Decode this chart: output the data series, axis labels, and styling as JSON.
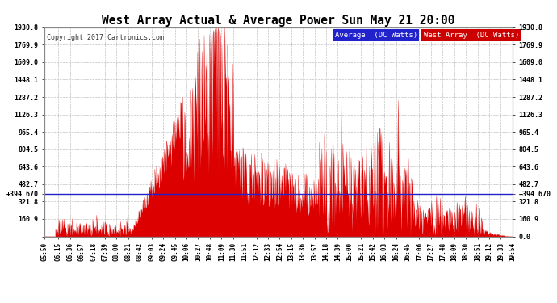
{
  "title": "West Array Actual & Average Power Sun May 21 20:00",
  "copyright": "Copyright 2017 Cartronics.com",
  "legend_labels": [
    "Average  (DC Watts)",
    "West Array  (DC Watts)"
  ],
  "legend_colors": [
    "#2222cc",
    "#cc0000"
  ],
  "avg_value": 394.67,
  "ylim": [
    0.0,
    1930.8
  ],
  "yticks": [
    0.0,
    160.9,
    321.8,
    394.67,
    482.7,
    643.6,
    804.5,
    965.4,
    1126.3,
    1287.2,
    1448.1,
    1609.0,
    1769.9,
    1930.8
  ],
  "ytick_labels_left": [
    "",
    "160.9",
    "321.8",
    "+394.670",
    "482.7",
    "643.6",
    "804.5",
    "965.4",
    "1126.3",
    "1287.2",
    "1448.1",
    "1609.0",
    "1769.9",
    "1930.8"
  ],
  "ytick_labels_right": [
    "0.0",
    "160.9",
    "321.8",
    "+394.670",
    "482.7",
    "643.6",
    "804.5",
    "965.4",
    "1126.3",
    "1287.2",
    "1448.1",
    "1609.0",
    "1769.9",
    "1930.8"
  ],
  "bg_color": "#ffffff",
  "plot_bg_color": "#ffffff",
  "grid_color": "#999999",
  "fill_color": "#dd0000",
  "avg_line_color": "#2222cc",
  "xtick_labels": [
    "05:50",
    "06:15",
    "06:36",
    "06:57",
    "07:18",
    "07:39",
    "08:00",
    "08:21",
    "08:42",
    "09:03",
    "09:24",
    "09:45",
    "10:06",
    "10:27",
    "10:48",
    "11:09",
    "11:30",
    "11:51",
    "12:12",
    "12:33",
    "12:54",
    "13:15",
    "13:36",
    "13:57",
    "14:18",
    "14:39",
    "15:00",
    "15:21",
    "15:42",
    "16:03",
    "16:24",
    "16:45",
    "17:06",
    "17:27",
    "17:48",
    "18:09",
    "18:30",
    "18:51",
    "19:12",
    "19:33",
    "19:54"
  ]
}
